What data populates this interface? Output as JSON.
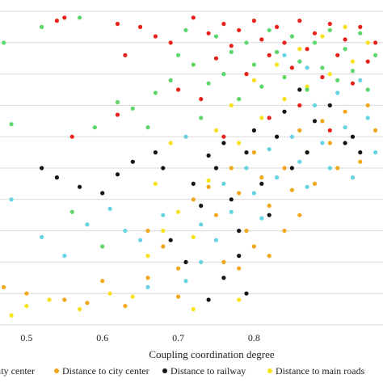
{
  "chart_data": {
    "type": "scatter",
    "xlabel": "Coupling coordination degree",
    "ylabel": "",
    "title": "",
    "xlim": [
      0.465,
      0.97
    ],
    "ylim": [
      0,
      1
    ],
    "x_ticks": [
      "0.5",
      "0.6",
      "0.7",
      "0.8"
    ],
    "grid": "horizontal",
    "legend_position": "bottom",
    "series": [
      {
        "name": "ity center",
        "color": "#E8211B",
        "points": [
          [
            0.54,
            0.97
          ],
          [
            0.55,
            0.98
          ],
          [
            0.62,
            0.96
          ],
          [
            0.63,
            0.86
          ],
          [
            0.65,
            0.95
          ],
          [
            0.67,
            0.92
          ],
          [
            0.69,
            0.9
          ],
          [
            0.72,
            0.98
          ],
          [
            0.74,
            0.93
          ],
          [
            0.75,
            0.85
          ],
          [
            0.76,
            0.96
          ],
          [
            0.77,
            0.89
          ],
          [
            0.78,
            0.94
          ],
          [
            0.79,
            0.8
          ],
          [
            0.8,
            0.97
          ],
          [
            0.81,
            0.91
          ],
          [
            0.82,
            0.86
          ],
          [
            0.83,
            0.95
          ],
          [
            0.84,
            0.9
          ],
          [
            0.85,
            0.82
          ],
          [
            0.86,
            0.97
          ],
          [
            0.87,
            0.88
          ],
          [
            0.88,
            0.93
          ],
          [
            0.89,
            0.79
          ],
          [
            0.9,
            0.96
          ],
          [
            0.91,
            0.86
          ],
          [
            0.92,
            0.91
          ],
          [
            0.93,
            0.77
          ],
          [
            0.94,
            0.95
          ],
          [
            0.95,
            0.84
          ],
          [
            0.96,
            0.9
          ],
          [
            0.62,
            0.67
          ],
          [
            0.7,
            0.75
          ],
          [
            0.73,
            0.72
          ],
          [
            0.76,
            0.6
          ],
          [
            0.82,
            0.66
          ],
          [
            0.86,
            0.7
          ],
          [
            0.9,
            0.62
          ],
          [
            0.56,
            0.6
          ]
        ]
      },
      {
        "name": "Distance to city center",
        "color": "#F2A71B",
        "points": [
          [
            0.47,
            0.12
          ],
          [
            0.5,
            0.1
          ],
          [
            0.55,
            0.08
          ],
          [
            0.58,
            0.07
          ],
          [
            0.6,
            0.14
          ],
          [
            0.63,
            0.06
          ],
          [
            0.66,
            0.3
          ],
          [
            0.68,
            0.25
          ],
          [
            0.7,
            0.18
          ],
          [
            0.72,
            0.4
          ],
          [
            0.74,
            0.44
          ],
          [
            0.75,
            0.35
          ],
          [
            0.76,
            0.2
          ],
          [
            0.77,
            0.5
          ],
          [
            0.78,
            0.42
          ],
          [
            0.79,
            0.3
          ],
          [
            0.8,
            0.55
          ],
          [
            0.81,
            0.47
          ],
          [
            0.82,
            0.38
          ],
          [
            0.83,
            0.6
          ],
          [
            0.84,
            0.5
          ],
          [
            0.85,
            0.43
          ],
          [
            0.86,
            0.62
          ],
          [
            0.87,
            0.55
          ],
          [
            0.88,
            0.45
          ],
          [
            0.89,
            0.65
          ],
          [
            0.9,
            0.58
          ],
          [
            0.91,
            0.5
          ],
          [
            0.92,
            0.68
          ],
          [
            0.93,
            0.6
          ],
          [
            0.94,
            0.52
          ],
          [
            0.95,
            0.7
          ],
          [
            0.96,
            0.62
          ],
          [
            0.78,
            0.18
          ],
          [
            0.8,
            0.25
          ],
          [
            0.82,
            0.22
          ],
          [
            0.84,
            0.3
          ],
          [
            0.86,
            0.35
          ],
          [
            0.66,
            0.15
          ],
          [
            0.7,
            0.09
          ]
        ]
      },
      {
        "name": "Distance to railway",
        "color": "#141414",
        "points": [
          [
            0.52,
            0.5
          ],
          [
            0.54,
            0.47
          ],
          [
            0.57,
            0.44
          ],
          [
            0.6,
            0.42
          ],
          [
            0.62,
            0.48
          ],
          [
            0.64,
            0.52
          ],
          [
            0.67,
            0.55
          ],
          [
            0.68,
            0.5
          ],
          [
            0.72,
            0.45
          ],
          [
            0.73,
            0.38
          ],
          [
            0.74,
            0.54
          ],
          [
            0.75,
            0.5
          ],
          [
            0.76,
            0.58
          ],
          [
            0.77,
            0.4
          ],
          [
            0.78,
            0.3
          ],
          [
            0.79,
            0.55
          ],
          [
            0.8,
            0.62
          ],
          [
            0.81,
            0.45
          ],
          [
            0.82,
            0.35
          ],
          [
            0.83,
            0.6
          ],
          [
            0.84,
            0.68
          ],
          [
            0.85,
            0.5
          ],
          [
            0.86,
            0.75
          ],
          [
            0.87,
            0.55
          ],
          [
            0.88,
            0.65
          ],
          [
            0.9,
            0.7
          ],
          [
            0.92,
            0.58
          ],
          [
            0.93,
            0.6
          ],
          [
            0.94,
            0.55
          ],
          [
            0.76,
            0.15
          ],
          [
            0.78,
            0.22
          ],
          [
            0.79,
            0.1
          ],
          [
            0.74,
            0.08
          ],
          [
            0.71,
            0.2
          ],
          [
            0.69,
            0.27
          ]
        ]
      },
      {
        "name": "Distance to main roads",
        "color": "#F8E21C",
        "points": [
          [
            0.48,
            0.03
          ],
          [
            0.5,
            0.06
          ],
          [
            0.53,
            0.08
          ],
          [
            0.57,
            0.05
          ],
          [
            0.61,
            0.1
          ],
          [
            0.64,
            0.09
          ],
          [
            0.66,
            0.22
          ],
          [
            0.68,
            0.3
          ],
          [
            0.7,
            0.36
          ],
          [
            0.72,
            0.28
          ],
          [
            0.74,
            0.46
          ],
          [
            0.75,
            0.62
          ],
          [
            0.77,
            0.7
          ],
          [
            0.78,
            0.58
          ],
          [
            0.8,
            0.78
          ],
          [
            0.81,
            0.66
          ],
          [
            0.83,
            0.83
          ],
          [
            0.84,
            0.72
          ],
          [
            0.86,
            0.88
          ],
          [
            0.87,
            0.76
          ],
          [
            0.89,
            0.92
          ],
          [
            0.9,
            0.8
          ],
          [
            0.92,
            0.95
          ],
          [
            0.93,
            0.84
          ],
          [
            0.95,
            0.9
          ],
          [
            0.67,
            0.45
          ],
          [
            0.69,
            0.58
          ],
          [
            0.72,
            0.05
          ],
          [
            0.78,
            0.08
          ]
        ]
      },
      {
        "name": "",
        "color": "#5DD66A",
        "points": [
          [
            0.47,
            0.9
          ],
          [
            0.48,
            0.64
          ],
          [
            0.52,
            0.95
          ],
          [
            0.57,
            0.98
          ],
          [
            0.59,
            0.63
          ],
          [
            0.62,
            0.71
          ],
          [
            0.64,
            0.69
          ],
          [
            0.67,
            0.74
          ],
          [
            0.69,
            0.78
          ],
          [
            0.7,
            0.86
          ],
          [
            0.71,
            0.94
          ],
          [
            0.72,
            0.83
          ],
          [
            0.74,
            0.77
          ],
          [
            0.75,
            0.92
          ],
          [
            0.76,
            0.8
          ],
          [
            0.77,
            0.87
          ],
          [
            0.78,
            0.72
          ],
          [
            0.79,
            0.9
          ],
          [
            0.8,
            0.83
          ],
          [
            0.81,
            0.76
          ],
          [
            0.82,
            0.94
          ],
          [
            0.83,
            0.87
          ],
          [
            0.84,
            0.79
          ],
          [
            0.85,
            0.92
          ],
          [
            0.86,
            0.84
          ],
          [
            0.87,
            0.75
          ],
          [
            0.88,
            0.9
          ],
          [
            0.89,
            0.82
          ],
          [
            0.9,
            0.94
          ],
          [
            0.91,
            0.78
          ],
          [
            0.92,
            0.88
          ],
          [
            0.93,
            0.81
          ],
          [
            0.94,
            0.93
          ],
          [
            0.95,
            0.75
          ],
          [
            0.96,
            0.86
          ],
          [
            0.56,
            0.36
          ],
          [
            0.6,
            0.25
          ],
          [
            0.66,
            0.63
          ],
          [
            0.73,
            0.66
          ]
        ]
      },
      {
        "name": "",
        "color": "#66D3E3",
        "points": [
          [
            0.48,
            0.4
          ],
          [
            0.52,
            0.28
          ],
          [
            0.55,
            0.22
          ],
          [
            0.58,
            0.32
          ],
          [
            0.61,
            0.37
          ],
          [
            0.63,
            0.3
          ],
          [
            0.65,
            0.27
          ],
          [
            0.68,
            0.35
          ],
          [
            0.71,
            0.6
          ],
          [
            0.73,
            0.32
          ],
          [
            0.75,
            0.27
          ],
          [
            0.76,
            0.45
          ],
          [
            0.77,
            0.36
          ],
          [
            0.79,
            0.5
          ],
          [
            0.8,
            0.42
          ],
          [
            0.81,
            0.34
          ],
          [
            0.82,
            0.56
          ],
          [
            0.83,
            0.47
          ],
          [
            0.85,
            0.6
          ],
          [
            0.86,
            0.52
          ],
          [
            0.87,
            0.44
          ],
          [
            0.88,
            0.7
          ],
          [
            0.89,
            0.58
          ],
          [
            0.9,
            0.5
          ],
          [
            0.91,
            0.74
          ],
          [
            0.92,
            0.63
          ],
          [
            0.93,
            0.47
          ],
          [
            0.94,
            0.78
          ],
          [
            0.95,
            0.66
          ],
          [
            0.96,
            0.55
          ],
          [
            0.71,
            0.14
          ],
          [
            0.73,
            0.2
          ],
          [
            0.66,
            0.12
          ],
          [
            0.84,
            0.86
          ],
          [
            0.87,
            0.82
          ]
        ]
      }
    ]
  }
}
